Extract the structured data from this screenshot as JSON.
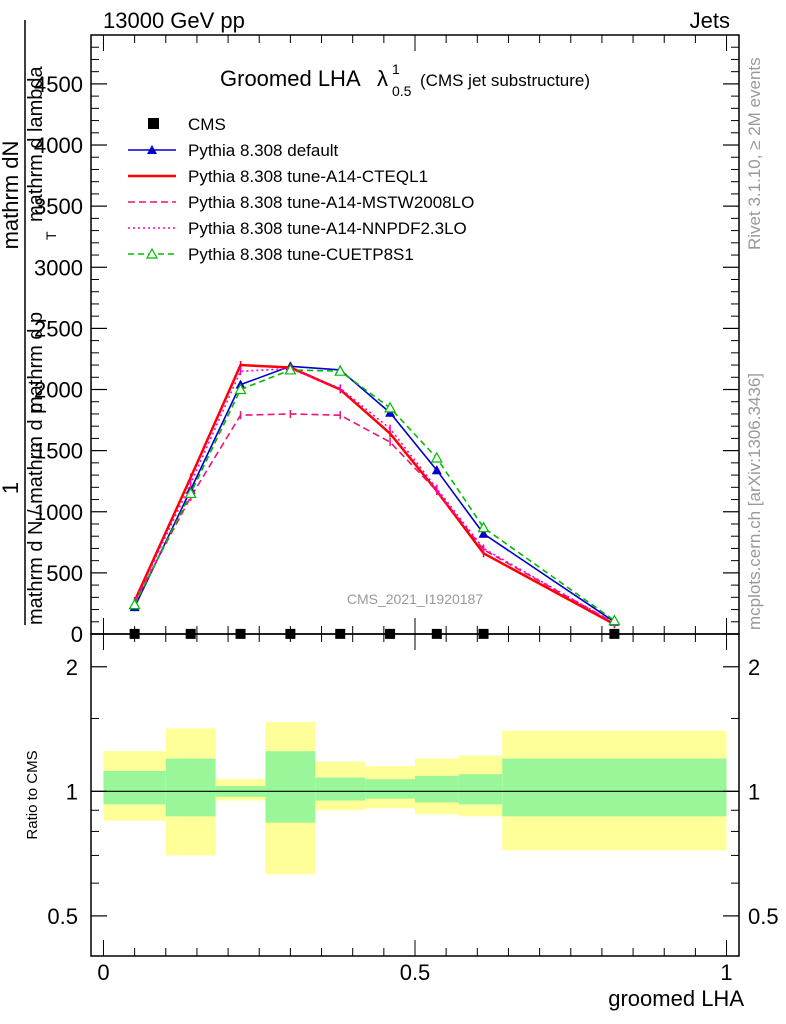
{
  "header": {
    "left": "13000 GeV pp",
    "right": "Jets"
  },
  "side_labels": {
    "rivet": "Rivet 3.1.10, ≥ 2M events",
    "mcplots": "mcplots.cern.ch [arXiv:1306.3436]"
  },
  "plot_title": {
    "main": "Groomed LHA",
    "lambda": "λ",
    "sup": "1",
    "sub": "0.5",
    "suffix": "(CMS jet substructure)"
  },
  "watermark": "CMS_2021_I1920187",
  "ylabel_main": {
    "one": "1",
    "frac_top": "mathrm dN",
    "frac_bottom_a": "mathrm d N / mathrm d p",
    "frac_bottom_b": "mathrm d p",
    "frac_bottom_c": "mathrm d lambda",
    "sub_t": "T"
  },
  "ylabel_ratio": "Ratio to CMS",
  "xlabel": "groomed LHA",
  "colors": {
    "cms": "#000000",
    "default": "#0000cc",
    "cteql1": "#ff0000",
    "mstw": "#ee1177",
    "nnpdf": "#ff00cc",
    "cuetp8s1": "#00bb00",
    "band_inner": "#99f799",
    "band_outer": "#ffff99"
  },
  "chart_data": [
    {
      "type": "line",
      "title": "Groomed LHA λ^1_0.5 (CMS jet substructure)",
      "xlim": [
        -0.02,
        1.02
      ],
      "ylim": [
        0,
        4900
      ],
      "yticks": [
        0,
        500,
        1000,
        1500,
        2000,
        2500,
        3000,
        3500,
        4000,
        4500
      ],
      "ytick_labels": [
        "0",
        "500",
        "1000",
        "1500",
        "2000",
        "2500",
        "3000",
        "3500",
        "4000",
        "4500"
      ],
      "legend_position": "top-left",
      "x": [
        0.05,
        0.14,
        0.22,
        0.3,
        0.38,
        0.46,
        0.535,
        0.61,
        0.82
      ],
      "series": [
        {
          "name": "CMS",
          "key": "cms",
          "style": "marker-square",
          "values": [
            1,
            1,
            1,
            1,
            1,
            1,
            1,
            1,
            1
          ]
        },
        {
          "name": "Pythia 8.308 default",
          "key": "default",
          "style": "solid-triangle",
          "values": [
            220,
            1180,
            2040,
            2190,
            2160,
            1810,
            1340,
            820,
            100
          ]
        },
        {
          "name": "Pythia 8.308 tune-A14-CTEQL1",
          "key": "cteql1",
          "style": "solid-thick",
          "values": [
            270,
            1280,
            2200,
            2180,
            2000,
            1640,
            1170,
            660,
            80
          ]
        },
        {
          "name": "Pythia 8.308 tune-A14-MSTW2008LO",
          "key": "mstw",
          "style": "dashed",
          "values": [
            260,
            1120,
            1790,
            1800,
            1790,
            1570,
            1170,
            690,
            90
          ]
        },
        {
          "name": "Pythia 8.308 tune-A14-NNPDF2.3LO",
          "key": "nnpdf",
          "style": "dotted",
          "values": [
            260,
            1230,
            2150,
            2170,
            2010,
            1680,
            1190,
            700,
            90
          ]
        },
        {
          "name": "Pythia 8.308 tune-CUETP8S1",
          "key": "cuetp8s1",
          "style": "dashed-open-triangle",
          "values": [
            240,
            1150,
            2000,
            2160,
            2150,
            1850,
            1440,
            870,
            110
          ]
        }
      ]
    },
    {
      "type": "area",
      "ylabel": "Ratio to CMS",
      "xlabel": "groomed LHA",
      "xlim": [
        -0.02,
        1.02
      ],
      "ylim": [
        0.4,
        2.4
      ],
      "log_scale_y": true,
      "yticks": [
        0.5,
        1,
        2
      ],
      "ytick_labels": [
        "0.5",
        "1",
        "2"
      ],
      "xticks": [
        0,
        0.5,
        1
      ],
      "xtick_labels": [
        "0",
        "0.5",
        "1"
      ],
      "bins": [
        {
          "x0": 0.0,
          "x1": 0.1,
          "inner": [
            0.93,
            1.12
          ],
          "outer": [
            0.85,
            1.25
          ]
        },
        {
          "x0": 0.1,
          "x1": 0.18,
          "inner": [
            0.87,
            1.2
          ],
          "outer": [
            0.7,
            1.42
          ]
        },
        {
          "x0": 0.18,
          "x1": 0.26,
          "inner": [
            0.97,
            1.03
          ],
          "outer": [
            0.95,
            1.07
          ]
        },
        {
          "x0": 0.26,
          "x1": 0.34,
          "inner": [
            0.84,
            1.25
          ],
          "outer": [
            0.63,
            1.47
          ]
        },
        {
          "x0": 0.34,
          "x1": 0.42,
          "inner": [
            0.95,
            1.08
          ],
          "outer": [
            0.9,
            1.18
          ]
        },
        {
          "x0": 0.42,
          "x1": 0.5,
          "inner": [
            0.96,
            1.07
          ],
          "outer": [
            0.91,
            1.15
          ]
        },
        {
          "x0": 0.5,
          "x1": 0.57,
          "inner": [
            0.94,
            1.09
          ],
          "outer": [
            0.88,
            1.2
          ]
        },
        {
          "x0": 0.57,
          "x1": 0.64,
          "inner": [
            0.93,
            1.1
          ],
          "outer": [
            0.87,
            1.22
          ]
        },
        {
          "x0": 0.64,
          "x1": 1.0,
          "inner": [
            0.87,
            1.2
          ],
          "outer": [
            0.72,
            1.4
          ]
        }
      ]
    }
  ]
}
